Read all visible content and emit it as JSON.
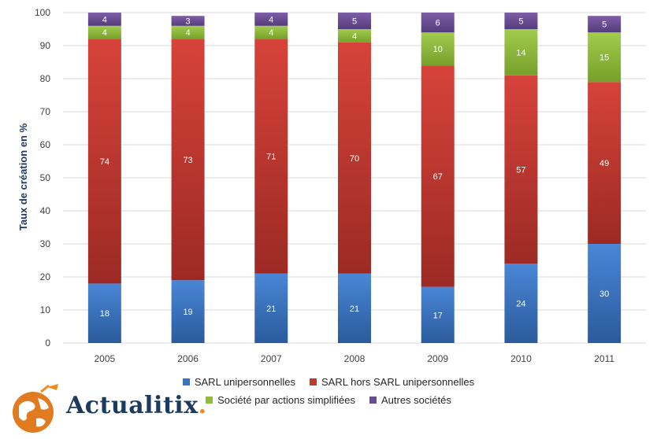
{
  "chart_data": {
    "type": "bar",
    "stacked": true,
    "title": "",
    "xlabel": "",
    "ylabel": "Taux de création en %",
    "ylim": [
      0,
      100
    ],
    "yticks": [
      0,
      10,
      20,
      30,
      40,
      50,
      60,
      70,
      80,
      90,
      100
    ],
    "categories": [
      "2005",
      "2006",
      "2007",
      "2008",
      "2009",
      "2010",
      "2011"
    ],
    "series": [
      {
        "name": "SARL unipersonnelles",
        "color": "#3a73c0",
        "values": [
          18,
          19,
          21,
          21,
          17,
          24,
          30
        ]
      },
      {
        "name": "SARL hors SARL unipersonnelles",
        "color": "#c0392b",
        "values": [
          74,
          73,
          71,
          70,
          67,
          57,
          49
        ]
      },
      {
        "name": "Société par actions simplifiées",
        "color": "#8fbc3a",
        "values": [
          4,
          4,
          4,
          4,
          10,
          14,
          15
        ]
      },
      {
        "name": "Autres sociétés",
        "color": "#6a4c93",
        "values": [
          4,
          3,
          4,
          5,
          6,
          5,
          5
        ]
      }
    ],
    "legend": "bottom"
  },
  "logo": {
    "brand": "Actualitix",
    "dot": "."
  }
}
